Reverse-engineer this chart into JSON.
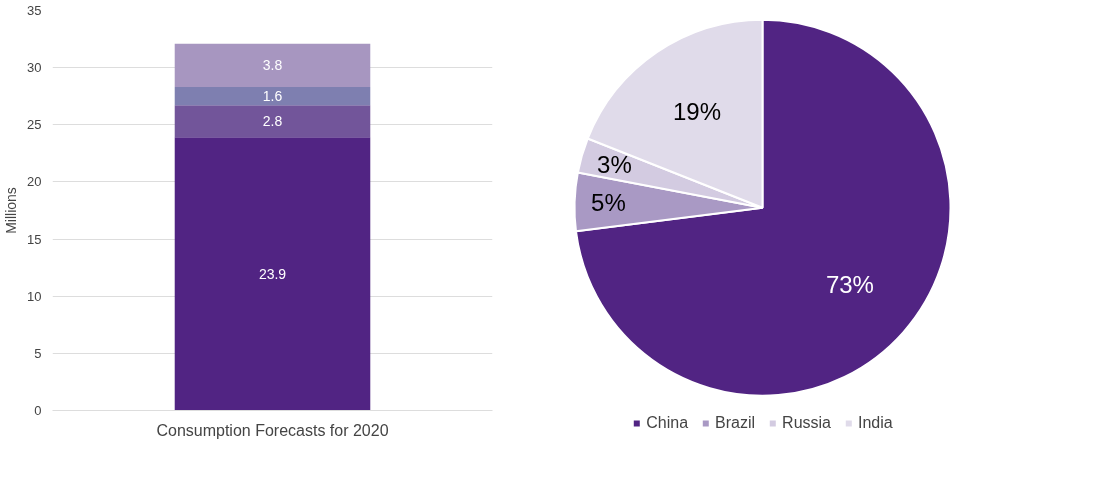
{
  "chart_data": [
    {
      "type": "bar",
      "stacked": true,
      "categories": [
        "Consumption Forecasts for 2020"
      ],
      "ylabel": "Millions",
      "ylim": [
        0,
        35
      ],
      "yticks": [
        0,
        5,
        10,
        15,
        20,
        25,
        30,
        35
      ],
      "grid": "y",
      "series": [
        {
          "color": "#512483",
          "values": [
            23.9
          ]
        },
        {
          "color": "#72559a",
          "values": [
            2.8
          ]
        },
        {
          "color": "#7e7fb0",
          "values": [
            1.6
          ]
        },
        {
          "color": "#a796c0",
          "values": [
            3.8
          ]
        }
      ],
      "data_labels": true
    },
    {
      "type": "pie",
      "categories": [
        "China",
        "Brazil",
        "Russia",
        "India"
      ],
      "values": [
        73,
        5,
        3,
        19
      ],
      "colors": [
        "#512483",
        "#a999c4",
        "#d3cbe1",
        "#e0dbea"
      ],
      "value_labels": [
        "73%",
        "5%",
        "3%",
        "19%"
      ],
      "legend": "bottom"
    }
  ]
}
